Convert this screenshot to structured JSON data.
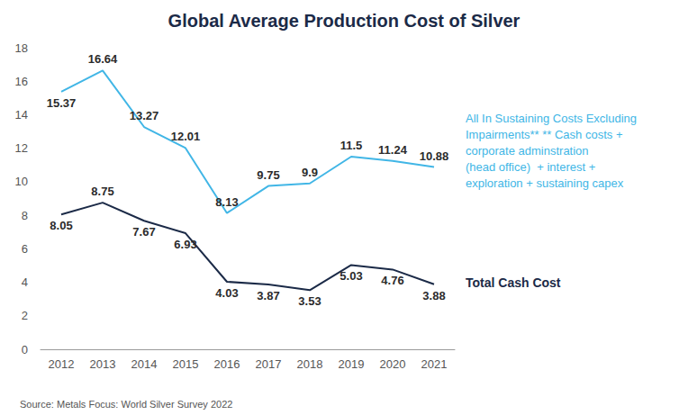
{
  "chart_data": {
    "type": "line",
    "title": "Global Average Production Cost of Silver",
    "categories": [
      "2012",
      "2013",
      "2014",
      "2015",
      "2016",
      "2017",
      "2018",
      "2019",
      "2020",
      "2021"
    ],
    "series": [
      {
        "name": "All In Sustaining Costs Excluding\nImpairments** ** Cash costs +\ncorporate adminstration\n(head office)  + interest +\nexploration + sustaining capex",
        "color": "#41b6e6",
        "values": [
          15.37,
          16.64,
          13.27,
          12.01,
          8.13,
          9.75,
          9.9,
          11.5,
          11.24,
          10.88
        ]
      },
      {
        "name": "Total Cash Cost",
        "color": "#1b2a47",
        "values": [
          8.05,
          8.75,
          7.67,
          6.93,
          4.03,
          3.87,
          3.53,
          5.03,
          4.76,
          3.88
        ]
      }
    ],
    "ylim": [
      0,
      18
    ],
    "yticks": [
      0,
      2,
      4,
      6,
      8,
      10,
      12,
      14,
      16,
      18
    ],
    "grid": false,
    "data_labels": true,
    "source": "Source: Metals Focus: World Silver Survey 2022"
  }
}
